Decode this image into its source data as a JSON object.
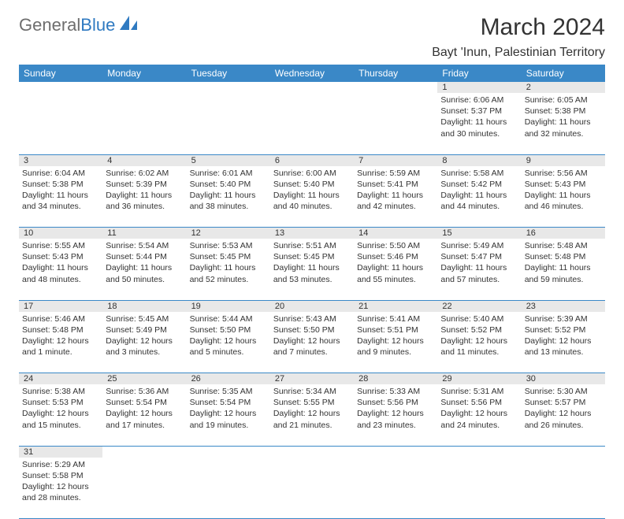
{
  "branding": {
    "logo_gray": "General",
    "logo_blue": "Blue",
    "logo_shape_color": "#2f7ac1"
  },
  "header": {
    "month_title": "March 2024",
    "location": "Bayt 'Inun, Palestinian Territory"
  },
  "colors": {
    "header_bg": "#3a88c7",
    "header_text": "#ffffff",
    "daynum_bg": "#e8e8e8",
    "cell_divider": "#3a88c7",
    "body_text": "#333333"
  },
  "day_headers": [
    "Sunday",
    "Monday",
    "Tuesday",
    "Wednesday",
    "Thursday",
    "Friday",
    "Saturday"
  ],
  "weeks": [
    {
      "daynums": [
        "",
        "",
        "",
        "",
        "",
        "1",
        "2"
      ],
      "cells": [
        null,
        null,
        null,
        null,
        null,
        {
          "sunrise": "Sunrise: 6:06 AM",
          "sunset": "Sunset: 5:37 PM",
          "daylight1": "Daylight: 11 hours",
          "daylight2": "and 30 minutes."
        },
        {
          "sunrise": "Sunrise: 6:05 AM",
          "sunset": "Sunset: 5:38 PM",
          "daylight1": "Daylight: 11 hours",
          "daylight2": "and 32 minutes."
        }
      ]
    },
    {
      "daynums": [
        "3",
        "4",
        "5",
        "6",
        "7",
        "8",
        "9"
      ],
      "cells": [
        {
          "sunrise": "Sunrise: 6:04 AM",
          "sunset": "Sunset: 5:38 PM",
          "daylight1": "Daylight: 11 hours",
          "daylight2": "and 34 minutes."
        },
        {
          "sunrise": "Sunrise: 6:02 AM",
          "sunset": "Sunset: 5:39 PM",
          "daylight1": "Daylight: 11 hours",
          "daylight2": "and 36 minutes."
        },
        {
          "sunrise": "Sunrise: 6:01 AM",
          "sunset": "Sunset: 5:40 PM",
          "daylight1": "Daylight: 11 hours",
          "daylight2": "and 38 minutes."
        },
        {
          "sunrise": "Sunrise: 6:00 AM",
          "sunset": "Sunset: 5:40 PM",
          "daylight1": "Daylight: 11 hours",
          "daylight2": "and 40 minutes."
        },
        {
          "sunrise": "Sunrise: 5:59 AM",
          "sunset": "Sunset: 5:41 PM",
          "daylight1": "Daylight: 11 hours",
          "daylight2": "and 42 minutes."
        },
        {
          "sunrise": "Sunrise: 5:58 AM",
          "sunset": "Sunset: 5:42 PM",
          "daylight1": "Daylight: 11 hours",
          "daylight2": "and 44 minutes."
        },
        {
          "sunrise": "Sunrise: 5:56 AM",
          "sunset": "Sunset: 5:43 PM",
          "daylight1": "Daylight: 11 hours",
          "daylight2": "and 46 minutes."
        }
      ]
    },
    {
      "daynums": [
        "10",
        "11",
        "12",
        "13",
        "14",
        "15",
        "16"
      ],
      "cells": [
        {
          "sunrise": "Sunrise: 5:55 AM",
          "sunset": "Sunset: 5:43 PM",
          "daylight1": "Daylight: 11 hours",
          "daylight2": "and 48 minutes."
        },
        {
          "sunrise": "Sunrise: 5:54 AM",
          "sunset": "Sunset: 5:44 PM",
          "daylight1": "Daylight: 11 hours",
          "daylight2": "and 50 minutes."
        },
        {
          "sunrise": "Sunrise: 5:53 AM",
          "sunset": "Sunset: 5:45 PM",
          "daylight1": "Daylight: 11 hours",
          "daylight2": "and 52 minutes."
        },
        {
          "sunrise": "Sunrise: 5:51 AM",
          "sunset": "Sunset: 5:45 PM",
          "daylight1": "Daylight: 11 hours",
          "daylight2": "and 53 minutes."
        },
        {
          "sunrise": "Sunrise: 5:50 AM",
          "sunset": "Sunset: 5:46 PM",
          "daylight1": "Daylight: 11 hours",
          "daylight2": "and 55 minutes."
        },
        {
          "sunrise": "Sunrise: 5:49 AM",
          "sunset": "Sunset: 5:47 PM",
          "daylight1": "Daylight: 11 hours",
          "daylight2": "and 57 minutes."
        },
        {
          "sunrise": "Sunrise: 5:48 AM",
          "sunset": "Sunset: 5:48 PM",
          "daylight1": "Daylight: 11 hours",
          "daylight2": "and 59 minutes."
        }
      ]
    },
    {
      "daynums": [
        "17",
        "18",
        "19",
        "20",
        "21",
        "22",
        "23"
      ],
      "cells": [
        {
          "sunrise": "Sunrise: 5:46 AM",
          "sunset": "Sunset: 5:48 PM",
          "daylight1": "Daylight: 12 hours",
          "daylight2": "and 1 minute."
        },
        {
          "sunrise": "Sunrise: 5:45 AM",
          "sunset": "Sunset: 5:49 PM",
          "daylight1": "Daylight: 12 hours",
          "daylight2": "and 3 minutes."
        },
        {
          "sunrise": "Sunrise: 5:44 AM",
          "sunset": "Sunset: 5:50 PM",
          "daylight1": "Daylight: 12 hours",
          "daylight2": "and 5 minutes."
        },
        {
          "sunrise": "Sunrise: 5:43 AM",
          "sunset": "Sunset: 5:50 PM",
          "daylight1": "Daylight: 12 hours",
          "daylight2": "and 7 minutes."
        },
        {
          "sunrise": "Sunrise: 5:41 AM",
          "sunset": "Sunset: 5:51 PM",
          "daylight1": "Daylight: 12 hours",
          "daylight2": "and 9 minutes."
        },
        {
          "sunrise": "Sunrise: 5:40 AM",
          "sunset": "Sunset: 5:52 PM",
          "daylight1": "Daylight: 12 hours",
          "daylight2": "and 11 minutes."
        },
        {
          "sunrise": "Sunrise: 5:39 AM",
          "sunset": "Sunset: 5:52 PM",
          "daylight1": "Daylight: 12 hours",
          "daylight2": "and 13 minutes."
        }
      ]
    },
    {
      "daynums": [
        "24",
        "25",
        "26",
        "27",
        "28",
        "29",
        "30"
      ],
      "cells": [
        {
          "sunrise": "Sunrise: 5:38 AM",
          "sunset": "Sunset: 5:53 PM",
          "daylight1": "Daylight: 12 hours",
          "daylight2": "and 15 minutes."
        },
        {
          "sunrise": "Sunrise: 5:36 AM",
          "sunset": "Sunset: 5:54 PM",
          "daylight1": "Daylight: 12 hours",
          "daylight2": "and 17 minutes."
        },
        {
          "sunrise": "Sunrise: 5:35 AM",
          "sunset": "Sunset: 5:54 PM",
          "daylight1": "Daylight: 12 hours",
          "daylight2": "and 19 minutes."
        },
        {
          "sunrise": "Sunrise: 5:34 AM",
          "sunset": "Sunset: 5:55 PM",
          "daylight1": "Daylight: 12 hours",
          "daylight2": "and 21 minutes."
        },
        {
          "sunrise": "Sunrise: 5:33 AM",
          "sunset": "Sunset: 5:56 PM",
          "daylight1": "Daylight: 12 hours",
          "daylight2": "and 23 minutes."
        },
        {
          "sunrise": "Sunrise: 5:31 AM",
          "sunset": "Sunset: 5:56 PM",
          "daylight1": "Daylight: 12 hours",
          "daylight2": "and 24 minutes."
        },
        {
          "sunrise": "Sunrise: 5:30 AM",
          "sunset": "Sunset: 5:57 PM",
          "daylight1": "Daylight: 12 hours",
          "daylight2": "and 26 minutes."
        }
      ]
    },
    {
      "daynums": [
        "31",
        "",
        "",
        "",
        "",
        "",
        ""
      ],
      "cells": [
        {
          "sunrise": "Sunrise: 5:29 AM",
          "sunset": "Sunset: 5:58 PM",
          "daylight1": "Daylight: 12 hours",
          "daylight2": "and 28 minutes."
        },
        null,
        null,
        null,
        null,
        null,
        null
      ]
    }
  ]
}
